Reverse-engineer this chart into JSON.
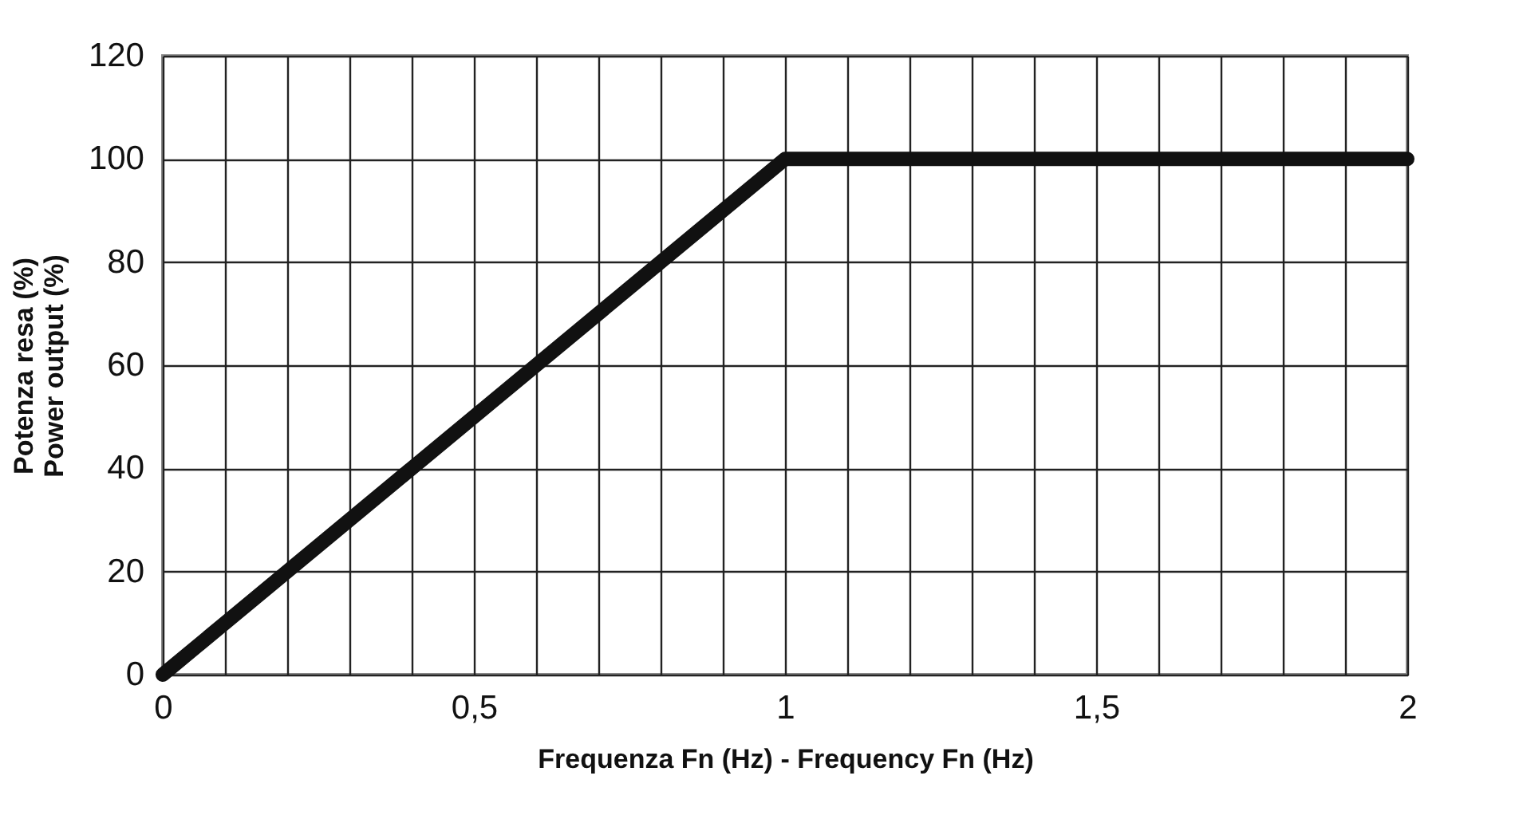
{
  "chart_data": {
    "type": "line",
    "xlabel": "Frequenza Fn (Hz) - Frequency Fn (Hz)",
    "ylabel": [
      "Potenza resa (%)",
      "Power output (%)"
    ],
    "x": [
      0,
      1,
      2
    ],
    "series": [
      {
        "color": "#111111",
        "values": [
          0,
          100,
          100
        ]
      }
    ],
    "xlim": [
      0,
      2
    ],
    "xticks": [
      0,
      {
        "value": 0.1,
        "label": null
      },
      {
        "value": 0.2,
        "label": null
      },
      {
        "value": 0.3,
        "label": null
      },
      {
        "value": 0.4,
        "label": null
      },
      {
        "value": 0.5,
        "label": "0,5"
      },
      {
        "value": 0.6,
        "label": null
      },
      {
        "value": 0.7,
        "label": null
      },
      {
        "value": 0.8,
        "label": null
      },
      {
        "value": 0.9,
        "label": null
      },
      1,
      {
        "value": 1.1,
        "label": null
      },
      {
        "value": 1.2,
        "label": null
      },
      {
        "value": 1.3,
        "label": null
      },
      {
        "value": 1.4,
        "label": null
      },
      {
        "value": 1.5,
        "label": "1,5"
      },
      {
        "value": 1.6,
        "label": null
      },
      {
        "value": 1.7,
        "label": null
      },
      {
        "value": 1.8,
        "label": null
      },
      {
        "value": 1.9,
        "label": null
      },
      2
    ],
    "ylim": [
      0,
      120
    ],
    "yticks": [
      0,
      20,
      40,
      60,
      80,
      100,
      120
    ],
    "grid": true,
    "marker": "none",
    "line_style": "solid"
  }
}
